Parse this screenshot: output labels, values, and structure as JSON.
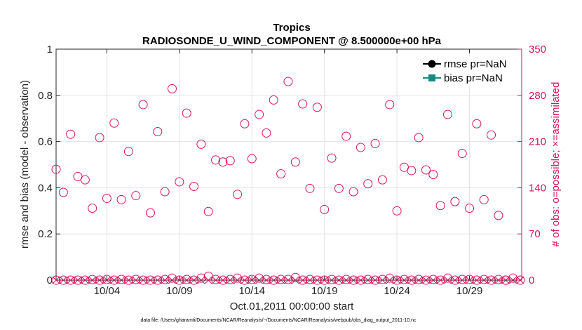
{
  "chart_data": {
    "type": "scatter",
    "title": "Tropics",
    "subtitle": "RADIOSONDE_U_WIND_COMPONENT @ 8.500000e+00 hPa",
    "xlabel": "Oct.01,2011 00:00:00 start",
    "ylabel_left": "rmse and bias (model - observation)",
    "ylabel_right": "# of obs: o=possible; ×=assimilated",
    "footnote": "data file: /Users/gharamti/Documents/NCAR/Reanalysis/~/Documents/NCAR/Reanalysis/webpub/obs_diag_output_2011-10.nc",
    "xlim": [
      0.5,
      32.6
    ],
    "ylim_left": [
      0,
      1
    ],
    "ylim_right": [
      0,
      350
    ],
    "x_ticks": [
      {
        "x": 4,
        "label": "10/04"
      },
      {
        "x": 9,
        "label": "10/09"
      },
      {
        "x": 14,
        "label": "10/14"
      },
      {
        "x": 19,
        "label": "10/19"
      },
      {
        "x": 24,
        "label": "10/24"
      },
      {
        "x": 29,
        "label": "10/29"
      }
    ],
    "y_ticks_left": [
      {
        "v": 0,
        "label": "0"
      },
      {
        "v": 0.2,
        "label": "0.2"
      },
      {
        "v": 0.4,
        "label": "0.4"
      },
      {
        "v": 0.6,
        "label": "0.6"
      },
      {
        "v": 0.8,
        "label": "0.8"
      },
      {
        "v": 1,
        "label": "1"
      }
    ],
    "y_ticks_right": [
      {
        "v": 0,
        "label": "0"
      },
      {
        "v": 70,
        "label": "70"
      },
      {
        "v": 140,
        "label": "140"
      },
      {
        "v": 210,
        "label": "210"
      },
      {
        "v": 280,
        "label": "280"
      },
      {
        "v": 350,
        "label": "350"
      }
    ],
    "legend": [
      {
        "name": "rmse pr=NaN",
        "marker": "circle",
        "color": "#000000"
      },
      {
        "name": "bias pr=NaN",
        "marker": "square",
        "color": "#1a8a80"
      }
    ],
    "legend_position": "top-right",
    "grid": true,
    "series": [
      {
        "name": "obs possible",
        "marker": "o",
        "color": "#d4145a",
        "axis": "right",
        "points": [
          [
            0.5,
            168
          ],
          [
            1,
            133
          ],
          [
            1.5,
            221
          ],
          [
            2,
            157
          ],
          [
            2.5,
            152
          ],
          [
            3,
            109
          ],
          [
            3.5,
            216
          ],
          [
            4,
            124
          ],
          [
            4.5,
            238
          ],
          [
            5,
            122
          ],
          [
            5.5,
            195
          ],
          [
            6,
            128
          ],
          [
            6.5,
            266
          ],
          [
            7,
            102
          ],
          [
            7.5,
            225
          ],
          [
            8,
            134
          ],
          [
            8.5,
            290
          ],
          [
            9,
            149
          ],
          [
            9.5,
            253
          ],
          [
            10,
            142
          ],
          [
            10.5,
            206
          ],
          [
            11,
            104
          ],
          [
            11.5,
            182
          ],
          [
            12,
            179
          ],
          [
            12.5,
            181
          ],
          [
            13,
            130
          ],
          [
            13.5,
            237
          ],
          [
            14,
            184
          ],
          [
            14.5,
            251
          ],
          [
            15,
            223
          ],
          [
            15.5,
            273
          ],
          [
            16,
            161
          ],
          [
            16.5,
            301
          ],
          [
            17,
            179
          ],
          [
            17.5,
            267
          ],
          [
            18,
            139
          ],
          [
            18.5,
            262
          ],
          [
            19,
            107
          ],
          [
            19.5,
            185
          ],
          [
            20,
            139
          ],
          [
            20.5,
            218
          ],
          [
            21,
            134
          ],
          [
            21.5,
            201
          ],
          [
            22,
            146
          ],
          [
            22.5,
            207
          ],
          [
            23,
            152
          ],
          [
            23.5,
            266
          ],
          [
            24,
            105
          ],
          [
            24.5,
            171
          ],
          [
            25,
            166
          ],
          [
            25.5,
            216
          ],
          [
            26,
            167
          ],
          [
            26.5,
            160
          ],
          [
            27,
            113
          ],
          [
            27.5,
            251
          ],
          [
            28,
            119
          ],
          [
            28.5,
            192
          ],
          [
            29,
            109
          ],
          [
            29.5,
            237
          ],
          [
            30,
            122
          ],
          [
            30.5,
            220
          ],
          [
            31,
            98
          ],
          [
            31.5,
            0
          ]
        ]
      },
      {
        "name": "obs assimilated",
        "marker": "x",
        "color": "#d4145a",
        "axis": "right",
        "points": [
          [
            0.5,
            0
          ],
          [
            1,
            0
          ],
          [
            1.5,
            0
          ],
          [
            2,
            0
          ],
          [
            2.5,
            0
          ],
          [
            3,
            0
          ],
          [
            3.5,
            0
          ],
          [
            4,
            0
          ],
          [
            4.5,
            0
          ],
          [
            5,
            0
          ],
          [
            5.5,
            0
          ],
          [
            6,
            0
          ],
          [
            6.5,
            0
          ],
          [
            7,
            0
          ],
          [
            7.5,
            0
          ],
          [
            8,
            0
          ],
          [
            8.5,
            0
          ],
          [
            9,
            0
          ],
          [
            9.5,
            0
          ],
          [
            10,
            0
          ],
          [
            10.5,
            0
          ],
          [
            11,
            0
          ],
          [
            11.5,
            0
          ],
          [
            12,
            0
          ],
          [
            12.5,
            0
          ],
          [
            13,
            0
          ],
          [
            13.5,
            0
          ],
          [
            14,
            0
          ],
          [
            14.5,
            0
          ],
          [
            15,
            0
          ],
          [
            15.5,
            0
          ],
          [
            16,
            0
          ],
          [
            16.5,
            0
          ],
          [
            17,
            0
          ],
          [
            17.5,
            0
          ],
          [
            18,
            0
          ],
          [
            18.5,
            0
          ],
          [
            19,
            0
          ],
          [
            19.5,
            0
          ],
          [
            20,
            0
          ],
          [
            20.5,
            0
          ],
          [
            21,
            0
          ],
          [
            21.5,
            0
          ],
          [
            22,
            0
          ],
          [
            22.5,
            0
          ],
          [
            23,
            0
          ],
          [
            23.5,
            0
          ],
          [
            24,
            0
          ],
          [
            24.5,
            0
          ],
          [
            25,
            0
          ],
          [
            25.5,
            0
          ],
          [
            26,
            0
          ],
          [
            26.5,
            0
          ],
          [
            27,
            0
          ],
          [
            27.5,
            0
          ],
          [
            28,
            0
          ],
          [
            28.5,
            0
          ],
          [
            29,
            0
          ],
          [
            29.5,
            0
          ],
          [
            30,
            0
          ],
          [
            30.5,
            0
          ],
          [
            31,
            0
          ],
          [
            31.5,
            0
          ],
          [
            32,
            0
          ],
          [
            32.5,
            0
          ]
        ]
      },
      {
        "name": "obs possible (near zero)",
        "marker": "o",
        "color": "#d4145a",
        "axis": "right",
        "points": [
          [
            0.5,
            0
          ],
          [
            1,
            0
          ],
          [
            1.5,
            0
          ],
          [
            2,
            0
          ],
          [
            2.5,
            0
          ],
          [
            3,
            1
          ],
          [
            3.5,
            0
          ],
          [
            4,
            1
          ],
          [
            4.5,
            0
          ],
          [
            5,
            1
          ],
          [
            5.5,
            0
          ],
          [
            6,
            1
          ],
          [
            6.5,
            0
          ],
          [
            7,
            0
          ],
          [
            7.5,
            0
          ],
          [
            8,
            1
          ],
          [
            8.5,
            3
          ],
          [
            9,
            0
          ],
          [
            9.5,
            1
          ],
          [
            10,
            0
          ],
          [
            10.5,
            3
          ],
          [
            11,
            6
          ],
          [
            11.5,
            1
          ],
          [
            12,
            0
          ],
          [
            12.5,
            1
          ],
          [
            13,
            3
          ],
          [
            13.5,
            0
          ],
          [
            14,
            1
          ],
          [
            14.5,
            3
          ],
          [
            15,
            1
          ],
          [
            15.5,
            0
          ],
          [
            16,
            1
          ],
          [
            16.5,
            1
          ],
          [
            17,
            4
          ],
          [
            17.5,
            0
          ],
          [
            18,
            1
          ],
          [
            18.5,
            0
          ],
          [
            19,
            0
          ],
          [
            19.5,
            1
          ],
          [
            20,
            0
          ],
          [
            20.5,
            1
          ],
          [
            21,
            0
          ],
          [
            21.5,
            0
          ],
          [
            22,
            1
          ],
          [
            22.5,
            0
          ],
          [
            23,
            1
          ],
          [
            23.5,
            3
          ],
          [
            24,
            0
          ],
          [
            24.5,
            1
          ],
          [
            25,
            0
          ],
          [
            25.5,
            1
          ],
          [
            26,
            0
          ],
          [
            26.5,
            1
          ],
          [
            27,
            0
          ],
          [
            27.5,
            3
          ],
          [
            28,
            0
          ],
          [
            28.5,
            1
          ],
          [
            29,
            1
          ],
          [
            29.5,
            0
          ],
          [
            30,
            1
          ],
          [
            30.5,
            0
          ],
          [
            31,
            1
          ],
          [
            31.5,
            0
          ],
          [
            32,
            3
          ],
          [
            32.5,
            0
          ]
        ]
      }
    ]
  }
}
